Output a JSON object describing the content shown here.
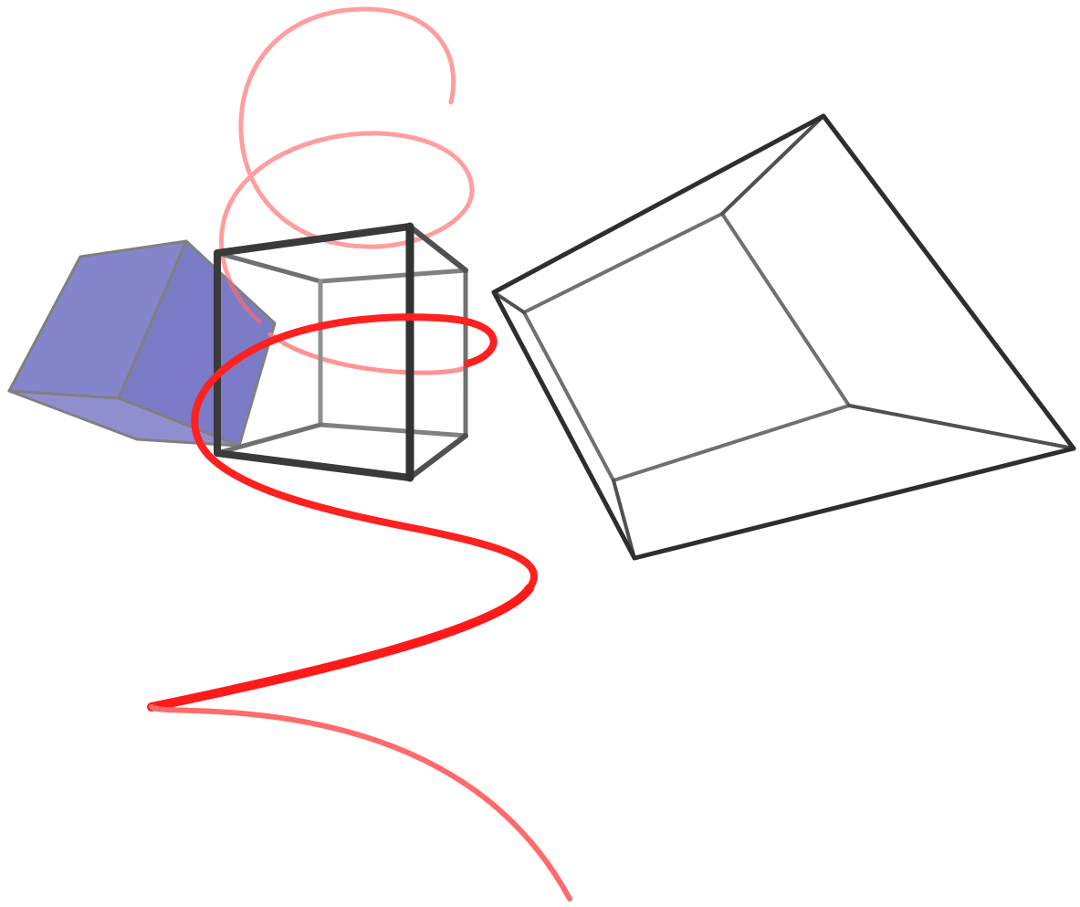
{
  "scene": {
    "shapes": [
      {
        "id": "shaded-cube",
        "kind": "solid-box",
        "fill_color": "#7a7ac8",
        "edge_color": "#808080"
      },
      {
        "id": "wire-cube",
        "kind": "wireframe-box",
        "edge_color": "#3a3a3a"
      },
      {
        "id": "wire-frustum",
        "kind": "wireframe-frustum",
        "edge_color": "#2e2e2e"
      },
      {
        "id": "helix-curve",
        "kind": "3d-spiral-curve",
        "stroke_color": "#ff1e1e"
      }
    ]
  }
}
